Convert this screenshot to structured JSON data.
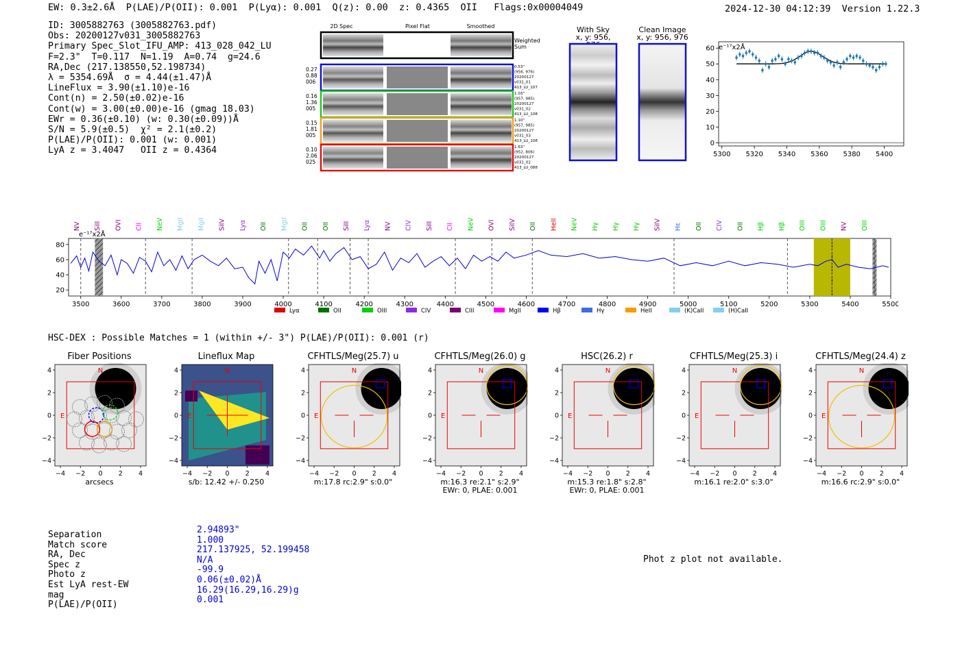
{
  "header": {
    "summary": "EW: 0.3±2.6Å  P(LAE)/P(OII): 0.001  P(Lyα): 0.001  Q(z): 0.00  z: 0.4365  OII   Flags:0x00004049",
    "timestamp": "2024-12-30 04:12:39  Version 1.22.3"
  },
  "info": [
    "ID: 3005882763 (3005882763.pdf)",
    "Obs: 20200127v031_3005882763",
    "Primary Spec_Slot_IFU_AMP: 413_028_042_LU",
    "F=2.3\"  T=0.117  N=1.19  A=0.74  g=24.6",
    "RA,Dec (217.138550,52.198734)",
    "λ = 5354.69Å  σ = 4.44(±1.47)Å",
    "LineFlux = 3.90(±1.10)e-16",
    "Cont(n) = 2.50(±0.02)e-16",
    "Cont(w) = 3.00(±0.00)e-16 (gmag 18.03)",
    "EWr = 0.36(±0.10) (w: 0.30(±0.09))Å",
    "S/N = 5.9(±0.5)  χ² = 2.1(±0.2)",
    "P(LAE)/P(OII): 0.001 (w: 0.001)",
    "LyA z = 3.4047   OII z = 0.4364"
  ],
  "spec2d": {
    "headers": [
      "2D Spec",
      "Pixel Flat",
      "Smoothed"
    ],
    "sum_label": "Weighted Sum",
    "rows": [
      {
        "left": [
          "0.27",
          "0.88",
          "006"
        ],
        "right": [
          "0.53\"",
          "(956, 976)",
          "20200127",
          "v031_01",
          "413_LU_107"
        ],
        "color": "#1010d0"
      },
      {
        "left": [
          "0.16",
          "1.36",
          "005"
        ],
        "right": [
          "1.03\"",
          "(957, 985)",
          "20200127",
          "v031_02",
          "413_LU_108"
        ],
        "color": "#20c820"
      },
      {
        "left": [
          "0.15",
          "1.81",
          "005"
        ],
        "right": [
          "1.10\"",
          "(957, 985)",
          "20200127",
          "v031_03",
          "413_LU_108"
        ],
        "color": "#f0a020"
      },
      {
        "left": [
          "0.10",
          "2.06",
          "025"
        ],
        "right": [
          "1.63\"",
          "(952, 806)",
          "20200127",
          "v031_02",
          "413_LU_088"
        ],
        "color": "#e01010"
      }
    ]
  },
  "cutouts": {
    "with_sky": [
      "With Sky",
      "x, y: 956, 976"
    ],
    "clean": [
      "Clean Image",
      "x, y: 956, 976"
    ]
  },
  "zoom_plot": {
    "ylabel": "e⁻¹⁷x2Å",
    "xticks": [
      "5300",
      "5320",
      "5340",
      "5360",
      "5380",
      "5400"
    ],
    "yticks": [
      "0",
      "10",
      "20",
      "30",
      "40",
      "50",
      "60"
    ]
  },
  "chart_data": [
    {
      "type": "line",
      "title": "",
      "xlabel": "",
      "ylabel": "e⁻¹⁷x2Å",
      "xlim": [
        3470,
        5500
      ],
      "ylim": [
        12,
        88
      ],
      "xticks": [
        3500,
        3600,
        3700,
        3800,
        3900,
        4000,
        4100,
        4200,
        4300,
        4400,
        4500,
        4600,
        4700,
        4800,
        4900,
        5000,
        5100,
        5200,
        5300,
        5400,
        5500
      ],
      "yticks": [
        20,
        40,
        60,
        80
      ],
      "series": [
        {
          "x": [
            3475,
            3490,
            3500,
            3510,
            3520,
            3530,
            3545,
            3560,
            3575,
            3590,
            3600,
            3615,
            3630,
            3645,
            3660,
            3675,
            3690,
            3705,
            3720,
            3735,
            3750,
            3765,
            3780,
            3800,
            3820,
            3840,
            3860,
            3880,
            3900,
            3915,
            3930,
            3940,
            3955,
            3970,
            3985,
            4000,
            4015,
            4030,
            4050,
            4070,
            4090,
            4100,
            4115,
            4130,
            4150,
            4170,
            4190,
            4210,
            4230,
            4250,
            4270,
            4290,
            4310,
            4330,
            4350,
            4370,
            4390,
            4410,
            4430,
            4450,
            4470,
            4490,
            4510,
            4530,
            4550,
            4570,
            4600,
            4630,
            4660,
            4700,
            4740,
            4780,
            4820,
            4860,
            4900,
            4940,
            4980,
            5020,
            5060,
            5100,
            5140,
            5180,
            5220,
            5260,
            5300,
            5320,
            5340,
            5355,
            5370,
            5390,
            5420,
            5450,
            5480,
            5495
          ],
          "y": [
            55,
            65,
            50,
            62,
            45,
            70,
            58,
            52,
            66,
            40,
            60,
            55,
            42,
            63,
            58,
            44,
            70,
            52,
            60,
            46,
            65,
            48,
            60,
            66,
            58,
            52,
            62,
            48,
            50,
            36,
            28,
            58,
            42,
            60,
            32,
            70,
            62,
            74,
            66,
            78,
            62,
            72,
            58,
            68,
            76,
            60,
            64,
            48,
            54,
            70,
            46,
            62,
            56,
            68,
            50,
            58,
            64,
            52,
            62,
            48,
            66,
            58,
            64,
            58,
            70,
            62,
            66,
            72,
            66,
            64,
            68,
            62,
            64,
            60,
            58,
            62,
            52,
            56,
            52,
            58,
            52,
            56,
            54,
            50,
            54,
            52,
            58,
            60,
            50,
            54,
            50,
            48,
            52,
            50
          ]
        }
      ],
      "shaded_regions": [
        {
          "x0": 5310,
          "x1": 5400,
          "color": "#b8b800"
        }
      ],
      "hatched_regions": [
        [
          3535,
          3555
        ],
        [
          5455,
          5465
        ]
      ],
      "line_marker_x": 5355,
      "legend": [
        "Lyα",
        "OII",
        "OIII",
        "CIV",
        "CIII",
        "MgII",
        "Hβ",
        "Hγ",
        "HeII",
        "(K)CaII",
        "(H)CaII"
      ],
      "legend_colors": [
        "#e00000",
        "#007000",
        "#00d000",
        "#8a2be2",
        "#7a0070",
        "#ff00ff",
        "#0000ff",
        "#4169e1",
        "#ff9900",
        "#87ceeb",
        "#87ceeb"
      ],
      "annotations": [
        "NV",
        "SiII",
        "OVI",
        "CII",
        "NeV",
        "MgII",
        "MgII",
        "SiIV",
        "Lyα",
        "OII",
        "MgII",
        "OII",
        "OII",
        "SiII",
        "Lyα",
        "NV",
        "CIV",
        "SiII",
        "CII",
        "NeV",
        "OVI",
        "SiIV",
        "OII",
        "HeII",
        "NeV",
        "Hγ",
        "Hγ",
        "Hγ",
        "SiIV",
        "Hε",
        "OII",
        "CIV",
        "OII",
        "Hβ",
        "Hβ",
        "OIII",
        "OIII",
        "NV",
        "OIII"
      ]
    },
    {
      "type": "scatter",
      "title": "",
      "xlim": [
        5298,
        5412
      ],
      "ylim": [
        -2,
        64
      ],
      "x": [
        5309,
        5311,
        5313,
        5315,
        5317,
        5319,
        5321,
        5323,
        5325,
        5327,
        5329,
        5331,
        5333,
        5335,
        5337,
        5339,
        5341,
        5343,
        5345,
        5347,
        5349,
        5351,
        5353,
        5355,
        5357,
        5359,
        5361,
        5363,
        5365,
        5367,
        5369,
        5371,
        5373,
        5375,
        5377,
        5379,
        5381,
        5383,
        5385,
        5387,
        5389,
        5391,
        5393,
        5395,
        5397,
        5399,
        5401
      ],
      "y": [
        54,
        56,
        55,
        57,
        58,
        56,
        54,
        52,
        46,
        50,
        48,
        52,
        53,
        55,
        53,
        50,
        53,
        52,
        51,
        54,
        55,
        57,
        58,
        58,
        57,
        57,
        55,
        54,
        52,
        51,
        49,
        51,
        48,
        51,
        53,
        55,
        54,
        55,
        54,
        52,
        50,
        49,
        48,
        46,
        48,
        50,
        50
      ]
    }
  ],
  "hsc_title": "HSC-DEX : Possible Matches = 1 (within +/- 3\")  P(LAE)/P(OII): 0.001 (r)",
  "thumbnails": [
    {
      "title": "Fiber Positions",
      "caption": [
        "arcsecs"
      ]
    },
    {
      "title": "Lineflux Map",
      "caption": [
        "s/b: 12.42 +/- 0.250"
      ]
    },
    {
      "title": "CFHTLS/Meg(25.7) u",
      "caption": [
        "m:17.8 rc:2.9\"  s:0.0\""
      ]
    },
    {
      "title": "CFHTLS/Meg(26.0) g",
      "caption": [
        "m:16.3  re:2.1\"  s:2.9\"",
        "EWr: 0, PLAE: 0.001"
      ]
    },
    {
      "title": "HSC(26.2) r",
      "caption": [
        "m:15.3  re:1.8\"  s:2.8\"",
        "EWr: 0, PLAE: 0.001"
      ]
    },
    {
      "title": "CFHTLS/Meg(25.3) i",
      "caption": [
        "m:16.1  re:2.0\"  s:3.0\""
      ]
    },
    {
      "title": "CFHTLS/Meg(24.4) z",
      "caption": [
        "m:16.6 rc:2.9\"  s:0.0\""
      ]
    }
  ],
  "thumb_ticks": [
    "−4",
    "−2",
    "0",
    "2",
    "4"
  ],
  "thumb_labels": {
    "north": "N",
    "east": "E"
  },
  "match": {
    "labels": [
      "Separation",
      "Match score",
      "RA, Dec",
      "Spec z",
      "Photo z",
      "Est LyA rest-EW",
      "mag",
      "P(LAE)/P(OII)"
    ],
    "values": [
      "2.94893\"",
      "1.000",
      "217.137925, 52.199458",
      "N/A",
      "-99.9",
      "0.06(±0.02)Å",
      "16.29(16.29,16.29)g",
      "0.001"
    ]
  },
  "photz_note": "Phot z plot not available."
}
